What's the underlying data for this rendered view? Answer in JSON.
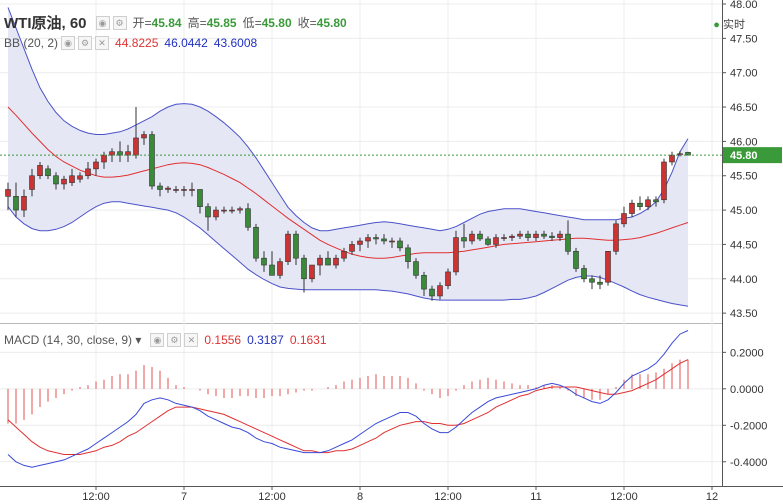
{
  "header": {
    "symbol": "WTI原油, 60",
    "open_label": "开=",
    "open": "45.84",
    "high_label": "高=",
    "high": "45.85",
    "low_label": "低=",
    "low": "45.80",
    "close_label": "收=",
    "close": "45.80",
    "live_label": "实时"
  },
  "bb_header": {
    "name": "BB (20, 2)",
    "mid": "44.8225",
    "upper": "46.0442",
    "lower": "43.6008"
  },
  "macd_header": {
    "name": "MACD (14, 30, close, 9)",
    "hist": "0.1556",
    "macd": "0.3187",
    "signal": "0.1631"
  },
  "colors": {
    "up": "#cc3333",
    "down": "#3a8a3a",
    "band": "#4a52c8",
    "band_fill": "#e6e7f5",
    "mid": "#e03030",
    "macd": "#3a4ad8",
    "signal": "#e03030",
    "hist": "#e05050",
    "price_tag": "#3a9a3a"
  },
  "chart_data": [
    {
      "type": "candlestick",
      "title": "WTI原油, 60",
      "ylim": [
        43.4,
        48.0
      ],
      "y_ticks": [
        "43.50",
        "44.00",
        "44.50",
        "45.00",
        "45.50",
        "46.00",
        "46.50",
        "47.00",
        "47.50",
        "48.00"
      ],
      "x_ticks": [
        "12:00",
        "7",
        "12:00",
        "8",
        "12:00",
        "11",
        "12:00",
        "12",
        "12:"
      ],
      "x_tick_index": [
        11,
        22,
        33,
        44,
        55,
        66,
        77,
        88,
        98
      ],
      "last_price": "45.80",
      "ohlc": [
        [
          45.2,
          45.4,
          45.0,
          45.3
        ],
        [
          45.2,
          45.4,
          44.9,
          45.0
        ],
        [
          45.0,
          45.3,
          44.9,
          45.2
        ],
        [
          45.3,
          45.6,
          45.2,
          45.5
        ],
        [
          45.5,
          45.7,
          45.45,
          45.65
        ],
        [
          45.6,
          45.65,
          45.45,
          45.5
        ],
        [
          45.5,
          45.55,
          45.3,
          45.38
        ],
        [
          45.38,
          45.5,
          45.3,
          45.45
        ],
        [
          45.4,
          45.6,
          45.35,
          45.5
        ],
        [
          45.45,
          45.55,
          45.4,
          45.5
        ],
        [
          45.5,
          45.7,
          45.45,
          45.6
        ],
        [
          45.6,
          45.75,
          45.5,
          45.7
        ],
        [
          45.7,
          45.85,
          45.6,
          45.8
        ],
        [
          45.8,
          45.9,
          45.7,
          45.85
        ],
        [
          45.85,
          46.0,
          45.7,
          45.8
        ],
        [
          45.8,
          45.95,
          45.7,
          45.85
        ],
        [
          45.8,
          46.5,
          45.75,
          46.05
        ],
        [
          46.05,
          46.15,
          45.95,
          46.1
        ],
        [
          46.1,
          46.15,
          45.3,
          45.35
        ],
        [
          45.35,
          45.4,
          45.2,
          45.3
        ],
        [
          45.3,
          45.35,
          45.25,
          45.32
        ],
        [
          45.3,
          45.35,
          45.25,
          45.3
        ],
        [
          45.3,
          45.35,
          45.2,
          45.3
        ],
        [
          45.3,
          45.4,
          45.2,
          45.3
        ],
        [
          45.3,
          45.3,
          44.95,
          45.05
        ],
        [
          45.05,
          45.1,
          44.7,
          44.9
        ],
        [
          44.9,
          45.05,
          44.85,
          45.0
        ],
        [
          45.0,
          45.05,
          44.95,
          45.0
        ],
        [
          45.0,
          45.05,
          44.95,
          45.0
        ],
        [
          45.0,
          45.05,
          44.95,
          45.02
        ],
        [
          45.02,
          45.1,
          44.7,
          44.75
        ],
        [
          44.75,
          44.8,
          44.25,
          44.3
        ],
        [
          44.3,
          44.4,
          44.1,
          44.2
        ],
        [
          44.2,
          44.4,
          44.05,
          44.05
        ],
        [
          44.05,
          44.3,
          44.0,
          44.25
        ],
        [
          44.25,
          44.7,
          44.2,
          44.65
        ],
        [
          44.65,
          44.7,
          44.2,
          44.3
        ],
        [
          44.3,
          44.35,
          43.8,
          44.0
        ],
        [
          44.0,
          44.2,
          43.95,
          44.2
        ],
        [
          44.2,
          44.35,
          44.05,
          44.3
        ],
        [
          44.3,
          44.4,
          44.2,
          44.2
        ],
        [
          44.2,
          44.35,
          44.15,
          44.3
        ],
        [
          44.3,
          44.45,
          44.25,
          44.4
        ],
        [
          44.4,
          44.55,
          44.35,
          44.5
        ],
        [
          44.5,
          44.6,
          44.4,
          44.55
        ],
        [
          44.55,
          44.65,
          44.45,
          44.6
        ],
        [
          44.6,
          44.65,
          44.5,
          44.58
        ],
        [
          44.58,
          44.65,
          44.5,
          44.55
        ],
        [
          44.55,
          44.6,
          44.45,
          44.55
        ],
        [
          44.55,
          44.6,
          44.4,
          44.45
        ],
        [
          44.45,
          44.5,
          44.15,
          44.25
        ],
        [
          44.25,
          44.3,
          44.0,
          44.05
        ],
        [
          44.05,
          44.1,
          43.75,
          43.85
        ],
        [
          43.85,
          43.9,
          43.68,
          43.75
        ],
        [
          43.75,
          43.95,
          43.7,
          43.9
        ],
        [
          43.9,
          44.15,
          43.85,
          44.1
        ],
        [
          44.1,
          44.7,
          44.05,
          44.6
        ],
        [
          44.6,
          44.8,
          44.45,
          44.55
        ],
        [
          44.55,
          44.7,
          44.5,
          44.65
        ],
        [
          44.65,
          44.7,
          44.55,
          44.58
        ],
        [
          44.58,
          44.62,
          44.48,
          44.5
        ],
        [
          44.5,
          44.65,
          44.45,
          44.6
        ],
        [
          44.6,
          44.65,
          44.55,
          44.6
        ],
        [
          44.6,
          44.65,
          44.55,
          44.62
        ],
        [
          44.62,
          44.7,
          44.58,
          44.65
        ],
        [
          44.65,
          44.7,
          44.55,
          44.6
        ],
        [
          44.6,
          44.7,
          44.55,
          44.65
        ],
        [
          44.65,
          44.7,
          44.58,
          44.62
        ],
        [
          44.62,
          44.68,
          44.55,
          44.6
        ],
        [
          44.6,
          44.7,
          44.55,
          44.65
        ],
        [
          44.65,
          44.85,
          44.35,
          44.4
        ],
        [
          44.4,
          44.45,
          44.1,
          44.15
        ],
        [
          44.15,
          44.2,
          43.95,
          44.0
        ],
        [
          44.0,
          44.05,
          43.85,
          43.95
        ],
        [
          43.95,
          44.05,
          43.85,
          43.92
        ],
        [
          43.95,
          44.4,
          43.9,
          44.4
        ],
        [
          44.4,
          44.85,
          44.35,
          44.8
        ],
        [
          44.8,
          45.05,
          44.75,
          44.95
        ],
        [
          44.95,
          45.15,
          44.9,
          45.1
        ],
        [
          45.1,
          45.2,
          45.0,
          45.05
        ],
        [
          45.05,
          45.2,
          45.0,
          45.15
        ],
        [
          45.15,
          45.2,
          45.05,
          45.12
        ],
        [
          45.15,
          45.75,
          45.1,
          45.7
        ],
        [
          45.7,
          45.85,
          45.65,
          45.8
        ],
        [
          45.82,
          45.86,
          45.78,
          45.82
        ],
        [
          45.84,
          45.85,
          45.8,
          45.8
        ]
      ],
      "bb_upper": [
        47.95,
        47.65,
        47.35,
        47.05,
        46.78,
        46.58,
        46.42,
        46.3,
        46.22,
        46.16,
        46.12,
        46.1,
        46.1,
        46.12,
        46.14,
        46.18,
        46.24,
        46.3,
        46.36,
        46.44,
        46.5,
        46.54,
        46.55,
        46.54,
        46.5,
        46.44,
        46.36,
        46.27,
        46.17,
        46.06,
        45.92,
        45.76,
        45.58,
        45.4,
        45.22,
        45.04,
        44.92,
        44.82,
        44.74,
        44.7,
        44.7,
        44.72,
        44.74,
        44.76,
        44.78,
        44.8,
        44.82,
        44.83,
        44.82,
        44.8,
        44.78,
        44.76,
        44.74,
        44.72,
        44.7,
        44.72,
        44.76,
        44.82,
        44.88,
        44.94,
        44.98,
        45.0,
        45.02,
        45.02,
        45.02,
        45.0,
        44.98,
        44.96,
        44.94,
        44.92,
        44.9,
        44.88,
        44.86,
        44.86,
        44.86,
        44.86,
        44.86,
        44.88,
        44.9,
        44.95,
        45.02,
        45.12,
        45.3,
        45.55,
        45.85,
        46.04
      ],
      "bb_mid": [
        46.5,
        46.38,
        46.25,
        46.12,
        46.0,
        45.88,
        45.78,
        45.7,
        45.64,
        45.58,
        45.54,
        45.5,
        45.48,
        45.48,
        45.49,
        45.51,
        45.54,
        45.57,
        45.6,
        45.63,
        45.66,
        45.68,
        45.69,
        45.68,
        45.66,
        45.62,
        45.57,
        45.52,
        45.46,
        45.4,
        45.32,
        45.24,
        45.15,
        45.06,
        44.97,
        44.88,
        44.8,
        44.72,
        44.64,
        44.56,
        44.5,
        44.45,
        44.4,
        44.36,
        44.33,
        44.31,
        44.3,
        44.3,
        44.31,
        44.33,
        44.35,
        44.37,
        44.38,
        44.38,
        44.38,
        44.38,
        44.39,
        44.4,
        44.42,
        44.44,
        44.46,
        44.48,
        44.5,
        44.51,
        44.52,
        44.53,
        44.54,
        44.55,
        44.56,
        44.57,
        44.58,
        44.59,
        44.59,
        44.58,
        44.57,
        44.56,
        44.56,
        44.57,
        44.58,
        44.6,
        44.63,
        44.66,
        44.7,
        44.74,
        44.78,
        44.82
      ],
      "bb_lower": [
        45.05,
        44.9,
        44.8,
        44.73,
        44.7,
        44.7,
        44.72,
        44.76,
        44.82,
        44.9,
        44.98,
        45.05,
        45.1,
        45.12,
        45.12,
        45.1,
        45.08,
        45.06,
        45.04,
        45.02,
        45.0,
        44.96,
        44.9,
        44.82,
        44.74,
        44.64,
        44.54,
        44.44,
        44.34,
        44.24,
        44.14,
        44.06,
        43.99,
        43.93,
        43.88,
        43.86,
        43.85,
        43.84,
        43.84,
        43.84,
        43.84,
        43.84,
        43.84,
        43.84,
        43.84,
        43.84,
        43.84,
        43.83,
        43.82,
        43.8,
        43.78,
        43.75,
        43.72,
        43.7,
        43.69,
        43.69,
        43.69,
        43.69,
        43.69,
        43.69,
        43.69,
        43.69,
        43.69,
        43.7,
        43.7,
        43.72,
        43.75,
        43.8,
        43.86,
        43.92,
        43.98,
        44.02,
        44.04,
        44.04,
        44.02,
        43.98,
        43.93,
        43.88,
        43.82,
        43.77,
        43.73,
        43.7,
        43.67,
        43.64,
        43.62,
        43.6
      ]
    },
    {
      "type": "line",
      "title": "MACD (14, 30, close, 9)",
      "ylim": [
        -0.5,
        0.35
      ],
      "y_ticks": [
        "0.2000",
        "0.0000",
        "-0.2000",
        "-0.4000"
      ],
      "series": [
        {
          "name": "MACD",
          "values": [
            -0.36,
            -0.4,
            -0.42,
            -0.43,
            -0.42,
            -0.41,
            -0.4,
            -0.39,
            -0.37,
            -0.35,
            -0.33,
            -0.3,
            -0.27,
            -0.24,
            -0.21,
            -0.18,
            -0.14,
            -0.08,
            -0.06,
            -0.05,
            -0.06,
            -0.08,
            -0.09,
            -0.1,
            -0.12,
            -0.15,
            -0.17,
            -0.19,
            -0.21,
            -0.22,
            -0.24,
            -0.27,
            -0.29,
            -0.3,
            -0.32,
            -0.33,
            -0.34,
            -0.35,
            -0.35,
            -0.35,
            -0.34,
            -0.32,
            -0.3,
            -0.28,
            -0.25,
            -0.22,
            -0.19,
            -0.17,
            -0.15,
            -0.13,
            -0.13,
            -0.15,
            -0.19,
            -0.22,
            -0.24,
            -0.24,
            -0.21,
            -0.17,
            -0.13,
            -0.1,
            -0.07,
            -0.05,
            -0.04,
            -0.03,
            -0.02,
            -0.01,
            0.0,
            0.02,
            0.03,
            0.02,
            0.0,
            -0.03,
            -0.05,
            -0.07,
            -0.08,
            -0.06,
            -0.02,
            0.03,
            0.07,
            0.09,
            0.11,
            0.14,
            0.19,
            0.25,
            0.3,
            0.32
          ]
        },
        {
          "name": "Signal",
          "values": [
            -0.17,
            -0.21,
            -0.25,
            -0.29,
            -0.32,
            -0.34,
            -0.35,
            -0.36,
            -0.36,
            -0.36,
            -0.35,
            -0.34,
            -0.32,
            -0.31,
            -0.29,
            -0.26,
            -0.24,
            -0.21,
            -0.18,
            -0.15,
            -0.12,
            -0.1,
            -0.1,
            -0.1,
            -0.11,
            -0.12,
            -0.13,
            -0.14,
            -0.16,
            -0.18,
            -0.2,
            -0.22,
            -0.24,
            -0.26,
            -0.28,
            -0.3,
            -0.32,
            -0.34,
            -0.34,
            -0.35,
            -0.35,
            -0.34,
            -0.34,
            -0.33,
            -0.31,
            -0.29,
            -0.27,
            -0.24,
            -0.22,
            -0.2,
            -0.19,
            -0.18,
            -0.18,
            -0.19,
            -0.19,
            -0.2,
            -0.2,
            -0.19,
            -0.17,
            -0.15,
            -0.13,
            -0.1,
            -0.08,
            -0.06,
            -0.04,
            -0.03,
            -0.01,
            0.0,
            0.01,
            0.01,
            0.01,
            0.01,
            0.0,
            -0.01,
            -0.02,
            -0.03,
            -0.03,
            -0.02,
            -0.01,
            0.01,
            0.03,
            0.05,
            0.08,
            0.11,
            0.14,
            0.16
          ]
        },
        {
          "name": "Histogram",
          "values": [
            -0.19,
            -0.19,
            -0.17,
            -0.14,
            -0.1,
            -0.07,
            -0.05,
            -0.03,
            -0.01,
            0.01,
            0.02,
            0.04,
            0.05,
            0.07,
            0.08,
            0.08,
            0.1,
            0.13,
            0.12,
            0.1,
            0.06,
            0.02,
            0.01,
            0.0,
            -0.01,
            -0.03,
            -0.04,
            -0.05,
            -0.05,
            -0.04,
            -0.04,
            -0.05,
            -0.05,
            -0.04,
            -0.04,
            -0.03,
            -0.02,
            -0.01,
            -0.01,
            0.0,
            0.01,
            0.02,
            0.04,
            0.05,
            0.06,
            0.07,
            0.08,
            0.07,
            0.07,
            0.07,
            0.06,
            0.03,
            -0.01,
            -0.03,
            -0.05,
            -0.04,
            -0.01,
            0.02,
            0.04,
            0.05,
            0.06,
            0.05,
            0.04,
            0.03,
            0.02,
            0.02,
            0.01,
            0.02,
            0.02,
            0.01,
            -0.01,
            -0.04,
            -0.05,
            -0.06,
            -0.06,
            -0.03,
            0.01,
            0.05,
            0.08,
            0.08,
            0.08,
            0.09,
            0.11,
            0.14,
            0.16,
            0.16
          ]
        }
      ]
    }
  ]
}
